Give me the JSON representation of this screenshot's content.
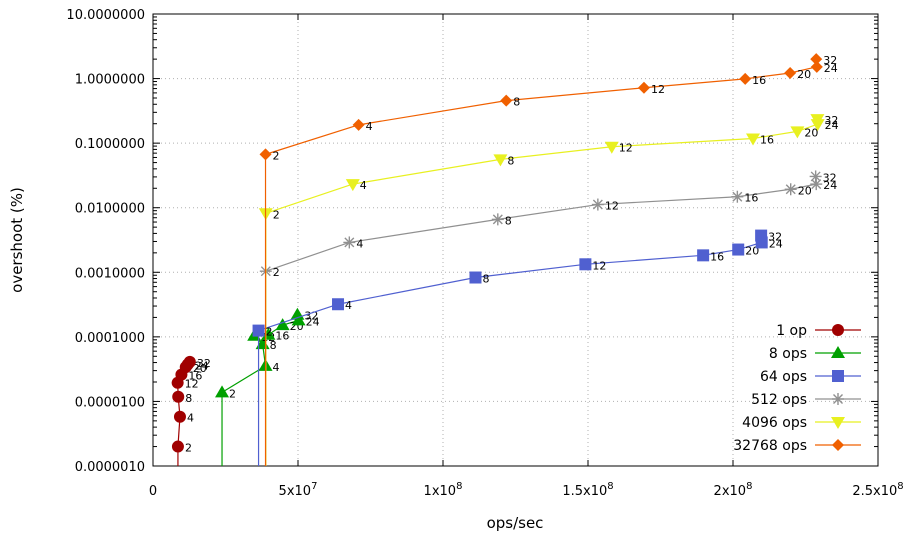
{
  "chart_data": {
    "type": "scatter",
    "title": "",
    "xlabel": "ops/sec",
    "ylabel": "overshoot (%)",
    "xscale": "linear",
    "yscale": "log",
    "xlim": [
      0,
      250000000
    ],
    "ylim": [
      1e-06,
      10
    ],
    "x_ticks": [
      {
        "value": 0,
        "label": "0"
      },
      {
        "value": 50000000,
        "label": "5x10",
        "exp": "7"
      },
      {
        "value": 100000000,
        "label": "1x10",
        "exp": "8"
      },
      {
        "value": 150000000,
        "label": "1.5x10",
        "exp": "8"
      },
      {
        "value": 200000000,
        "label": "2x10",
        "exp": "8"
      },
      {
        "value": 250000000,
        "label": "2.5x10",
        "exp": "8"
      }
    ],
    "y_ticks": [
      {
        "value": 10,
        "label": "10.0000000"
      },
      {
        "value": 1,
        "label": "1.0000000"
      },
      {
        "value": 0.1,
        "label": "0.1000000"
      },
      {
        "value": 0.01,
        "label": "0.0100000"
      },
      {
        "value": 0.001,
        "label": "0.0010000"
      },
      {
        "value": 0.0001,
        "label": "0.0001000"
      },
      {
        "value": 1e-05,
        "label": "0.0000100"
      },
      {
        "value": 1e-06,
        "label": "0.0000010"
      }
    ],
    "grid": true,
    "legend_position": "bottom-right",
    "series": [
      {
        "name": "1 op",
        "color": "#a00000",
        "marker": "circle",
        "points": [
          {
            "x": 8600000,
            "y": 2e-06,
            "label": "2"
          },
          {
            "x": 9300000,
            "y": 5.8e-06,
            "label": "4"
          },
          {
            "x": 8700000,
            "y": 1.18e-05,
            "label": "8"
          },
          {
            "x": 8500000,
            "y": 1.95e-05,
            "label": "12"
          },
          {
            "x": 9800000,
            "y": 2.6e-05,
            "label": "16"
          },
          {
            "x": 11300000,
            "y": 3.4e-05,
            "label": "20"
          },
          {
            "x": 12000000,
            "y": 3.75e-05,
            "label": "24"
          },
          {
            "x": 12700000,
            "y": 4.1e-05,
            "label": "32"
          }
        ]
      },
      {
        "name": "8 ops",
        "color": "#00a000",
        "marker": "triangle-up",
        "points": [
          {
            "x": 23800000,
            "y": 1.38e-05,
            "label": "2"
          },
          {
            "x": 38800000,
            "y": 3.55e-05,
            "label": "4"
          },
          {
            "x": 37800000,
            "y": 7.7e-05,
            "label": "8"
          },
          {
            "x": 34900000,
            "y": 0.000104,
            "label": "12"
          },
          {
            "x": 39800000,
            "y": 0.000108,
            "label": "16"
          },
          {
            "x": 44700000,
            "y": 0.000152,
            "label": "20"
          },
          {
            "x": 50200000,
            "y": 0.00018,
            "label": "24"
          },
          {
            "x": 49800000,
            "y": 0.00022,
            "label": "32"
          }
        ]
      },
      {
        "name": "64 ops",
        "color": "#5060d0",
        "marker": "square",
        "points": [
          {
            "x": 36400000,
            "y": 0.000125,
            "label": "2"
          },
          {
            "x": 63800000,
            "y": 0.00032,
            "label": "4"
          },
          {
            "x": 111200000,
            "y": 0.00083,
            "label": "8"
          },
          {
            "x": 149100000,
            "y": 0.00133,
            "label": "12"
          },
          {
            "x": 189700000,
            "y": 0.00183,
            "label": "16"
          },
          {
            "x": 201800000,
            "y": 0.00225,
            "label": "20"
          },
          {
            "x": 209900000,
            "y": 0.0029,
            "label": "24"
          },
          {
            "x": 209700000,
            "y": 0.0037,
            "label": "32"
          }
        ]
      },
      {
        "name": "512 ops",
        "color": "#909090",
        "marker": "asterisk",
        "points": [
          {
            "x": 38900000,
            "y": 0.00104,
            "label": "2"
          },
          {
            "x": 67700000,
            "y": 0.0029,
            "label": "4"
          },
          {
            "x": 118900000,
            "y": 0.0066,
            "label": "8"
          },
          {
            "x": 153400000,
            "y": 0.0112,
            "label": "12"
          },
          {
            "x": 201500000,
            "y": 0.0148,
            "label": "16"
          },
          {
            "x": 219900000,
            "y": 0.0193,
            "label": "20"
          },
          {
            "x": 228700000,
            "y": 0.0232,
            "label": "24"
          },
          {
            "x": 228500000,
            "y": 0.0305,
            "label": "32"
          }
        ]
      },
      {
        "name": "4096 ops",
        "color": "#e8f020",
        "marker": "triangle-down",
        "points": [
          {
            "x": 38900000,
            "y": 0.0082,
            "label": "2"
          },
          {
            "x": 68900000,
            "y": 0.0232,
            "label": "4"
          },
          {
            "x": 119800000,
            "y": 0.056,
            "label": "8"
          },
          {
            "x": 158200000,
            "y": 0.088,
            "label": "12"
          },
          {
            "x": 206900000,
            "y": 0.118,
            "label": "16"
          },
          {
            "x": 222200000,
            "y": 0.152,
            "label": "20"
          },
          {
            "x": 229200000,
            "y": 0.197,
            "label": "24"
          },
          {
            "x": 229100000,
            "y": 0.236,
            "label": "32"
          }
        ]
      },
      {
        "name": "32768 ops",
        "color": "#f06000",
        "marker": "diamond",
        "points": [
          {
            "x": 38800000,
            "y": 0.067,
            "label": "2"
          },
          {
            "x": 70900000,
            "y": 0.192,
            "label": "4"
          },
          {
            "x": 121800000,
            "y": 0.455,
            "label": "8"
          },
          {
            "x": 169300000,
            "y": 0.72,
            "label": "12"
          },
          {
            "x": 204200000,
            "y": 0.99,
            "label": "16"
          },
          {
            "x": 219700000,
            "y": 1.22,
            "label": "20"
          },
          {
            "x": 228900000,
            "y": 1.52,
            "label": "24"
          },
          {
            "x": 228700000,
            "y": 2.0,
            "label": "32"
          }
        ]
      }
    ]
  }
}
